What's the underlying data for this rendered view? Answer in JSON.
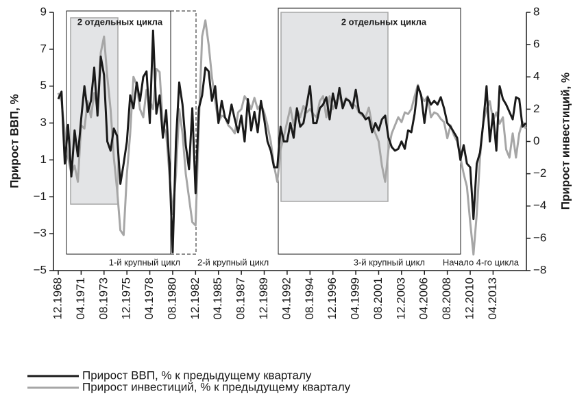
{
  "chart_data": {
    "type": "line",
    "ylabel": "Прирост ВВП, %",
    "y2label": "Прирост инвестиций, %",
    "ylim": [
      -5,
      9
    ],
    "yticks": [
      {
        "value": -5,
        "label": "−5"
      },
      {
        "value": -3,
        "label": "−3"
      },
      {
        "value": -1,
        "label": "−1"
      },
      1,
      3,
      5,
      7,
      9
    ],
    "y2lim": [
      -8,
      8
    ],
    "y2ticks": [
      {
        "value": -8,
        "label": "−8"
      },
      {
        "value": -6,
        "label": "−6"
      },
      {
        "value": -4,
        "label": "−4"
      },
      {
        "value": -2,
        "label": "−2"
      },
      0,
      2,
      4,
      6,
      8
    ],
    "annotations": [
      "2 отдельных цикла",
      "2 отдельных цикла",
      "1-й крупный цикл",
      "2-й крупный цикл",
      "3-й крупный цикл",
      "Начало 4-го цикла"
    ],
    "categories": [
      "12.1968",
      null,
      null,
      null,
      null,
      null,
      null,
      "04.1971",
      null,
      null,
      null,
      null,
      null,
      null,
      "08.1973",
      null,
      null,
      null,
      null,
      null,
      null,
      "12.1975",
      null,
      null,
      null,
      null,
      null,
      null,
      "04.1978",
      null,
      null,
      null,
      null,
      null,
      null,
      "08.1980",
      null,
      null,
      null,
      null,
      null,
      null,
      "12.1982",
      null,
      null,
      null,
      null,
      null,
      null,
      "04.1985",
      null,
      null,
      null,
      null,
      null,
      null,
      "08.1987",
      null,
      null,
      null,
      null,
      null,
      null,
      "12.1989",
      null,
      null,
      null,
      null,
      null,
      null,
      "04.1992",
      null,
      null,
      null,
      null,
      null,
      null,
      "08.1994",
      null,
      null,
      null,
      null,
      null,
      null,
      "12.1996",
      null,
      null,
      null,
      null,
      null,
      null,
      "04.1999",
      null,
      null,
      null,
      null,
      null,
      null,
      "08.2001",
      null,
      null,
      null,
      null,
      null,
      null,
      "12.2003",
      null,
      null,
      null,
      null,
      null,
      null,
      "04.2006",
      null,
      null,
      null,
      null,
      null,
      null,
      "08.2008",
      null,
      null,
      null,
      null,
      null,
      null,
      "12.2010",
      null,
      null,
      null,
      null,
      null,
      null,
      "04.2013",
      null,
      null,
      null,
      null,
      null,
      null,
      null,
      null,
      null,
      null
    ],
    "series": [
      {
        "name": "Прирост ВВП, % к предыдущему кварталу",
        "color": "#1a1a1a",
        "axis": "y",
        "values": [
          4.3,
          4.7,
          0.8,
          2.9,
          0.1,
          2.6,
          1.2,
          3.2,
          5.0,
          3.6,
          4.2,
          6.0,
          3.4,
          6.6,
          5.6,
          2.0,
          1.5,
          2.7,
          2.3,
          -0.3,
          0.8,
          2.0,
          4.5,
          3.8,
          5.2,
          4.2,
          5.5,
          5.8,
          3.0,
          8.0,
          3.5,
          4.5,
          2.2,
          3.7,
          0.7,
          -4.0,
          2.0,
          5.2,
          4.0,
          1.8,
          0.5,
          3.8,
          -0.8,
          3.8,
          4.5,
          6.0,
          5.8,
          4.2,
          5.0,
          3.0,
          4.2,
          3.3,
          3.0,
          4.0,
          3.2,
          2.5,
          3.4,
          2.0,
          4.3,
          2.6,
          3.6,
          2.5,
          4.2,
          3.2,
          2.0,
          1.5,
          0.6,
          0.6,
          2.8,
          2.0,
          2.0,
          3.0,
          2.2,
          3.8,
          2.8,
          3.0,
          4.0,
          5.0,
          3.0,
          3.0,
          3.8,
          4.0,
          4.4,
          3.2,
          4.6,
          3.8,
          4.9,
          3.8,
          4.3,
          4.2,
          3.8,
          4.8,
          3.6,
          3.5,
          3.2,
          3.3,
          2.5,
          3.0,
          2.6,
          3.2,
          3.4,
          2.2,
          1.7,
          1.5,
          1.6,
          2.0,
          1.6,
          2.6,
          2.5,
          3.5,
          5.0,
          4.5,
          3.0,
          4.4,
          4.0,
          4.2,
          4.0,
          4.4,
          3.8,
          3.0,
          2.8,
          2.5,
          2.2,
          1.0,
          1.8,
          0.8,
          0.6,
          -2.2,
          0.8,
          1.4,
          3.0,
          5.0,
          2.0,
          3.5,
          1.5,
          5.0,
          4.3,
          4.0,
          3.6,
          3.2,
          4.4,
          4.3,
          2.8,
          3.0
        ]
      },
      {
        "name": "Прирост инвестиций, % к предыдущему кварталу",
        "color": "#a6a6a6",
        "axis": "y2",
        "values": [
          3,
          2.5,
          0.5,
          -1,
          -2,
          -1.5,
          -2.5,
          1,
          0.8,
          2.5,
          1.5,
          3,
          2,
          5.5,
          6.5,
          4,
          2,
          -1,
          -3,
          -5.5,
          -5.8,
          -2,
          0.5,
          4,
          3.5,
          2,
          1.5,
          3.2,
          2.5,
          2,
          4.5,
          4.3,
          1,
          0.5,
          -2,
          -4.5,
          -2,
          2,
          0.5,
          -2,
          -3.5,
          -5,
          -5.2,
          1,
          6.5,
          7.5,
          6,
          4,
          2.5,
          1.2,
          1.6,
          1.5,
          1,
          0.8,
          0.5,
          1.8,
          2,
          2.8,
          2.5,
          2,
          2.7,
          2,
          2.3,
          1.8,
          1,
          0,
          -1.5,
          -2.5,
          -0.5,
          0.3,
          1.2,
          2.1,
          1,
          2,
          1.5,
          2.2,
          1.8,
          2,
          1.7,
          1.5,
          2.5,
          2.8,
          1.5,
          2.8,
          2,
          2.5,
          2.8,
          2.2,
          2.7,
          2.5,
          2.3,
          2.2,
          1.8,
          1.6,
          1.5,
          2.1,
          1,
          0.5,
          0,
          -1.5,
          -2.5,
          -0.5,
          0.5,
          1,
          1.5,
          1.2,
          1.8,
          1.7,
          2,
          2.8,
          3.5,
          2.8,
          2.5,
          2.8,
          1.5,
          1.8,
          1.7,
          1.4,
          1.2,
          0.2,
          1,
          0.4,
          0,
          -1,
          -2,
          -2.8,
          -5,
          -7,
          -4.5,
          -1,
          1.2,
          2,
          2.5,
          1.3,
          1.8,
          1.1,
          1.5,
          -0.5,
          -1,
          0.5,
          -1,
          0.5,
          1.2,
          0.8
        ]
      }
    ]
  }
}
